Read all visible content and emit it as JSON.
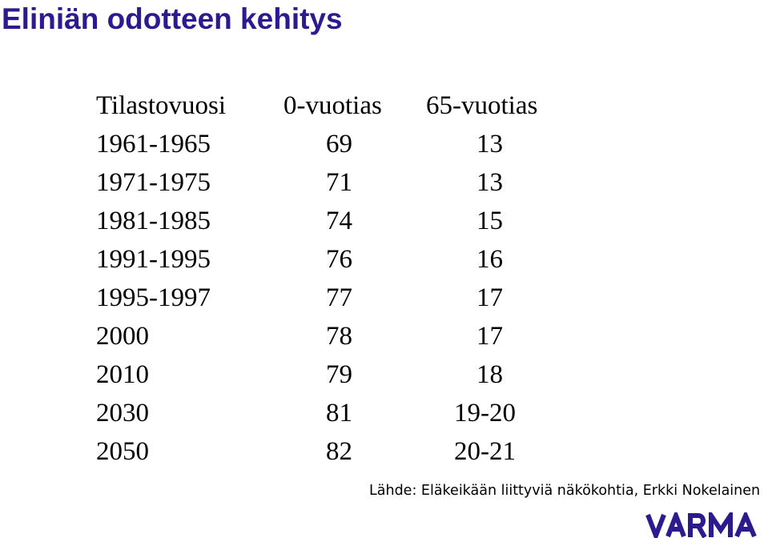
{
  "title": "Eliniän odotteen kehitys",
  "table": {
    "headers": [
      "Tilastovuosi",
      "0-vuotias",
      "65-vuotias"
    ],
    "rows": [
      [
        "1961-1965",
        "69",
        "13"
      ],
      [
        "1971-1975",
        "71",
        "13"
      ],
      [
        "1981-1985",
        "74",
        "15"
      ],
      [
        "1991-1995",
        "76",
        "16"
      ],
      [
        "1995-1997",
        "77",
        "17"
      ],
      [
        "2000",
        "78",
        "17"
      ],
      [
        "2010",
        "79",
        "18"
      ],
      [
        "2030",
        "81",
        "19-20"
      ],
      [
        "2050",
        "82",
        "20-21"
      ]
    ]
  },
  "source": "Lähde: Eläkeikään liittyviä näkökohtia, Erkki Nokelainen",
  "logo": {
    "text": "VARMA",
    "color": "#2e1a8f"
  },
  "colors": {
    "title": "#2e1a8f",
    "text": "#000000",
    "background": "#ffffff"
  }
}
